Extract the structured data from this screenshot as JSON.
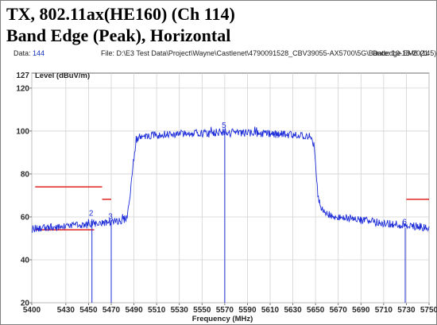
{
  "title_line1": "TX, 802.11ax(HE160) (Ch 114)",
  "title_line2": "Band Edge (Peak), Horizontal",
  "header": {
    "data_label": "Data:",
    "data_value": "144",
    "file_text": "File: D:\\E3 Test Data\\Project\\Wayne\\Castlenet\\4790091528_CBV39055-AX5700\\5G\\Bandedge.EM6  (145)",
    "date_text": "Date: 10-18-2021"
  },
  "chart_data": {
    "type": "line",
    "title": "",
    "xlabel": "Frequency (MHz)",
    "ylabel": "Level (dBuV/m)",
    "xlim": [
      5400,
      5750
    ],
    "ylim": [
      20,
      127
    ],
    "x_ticks": [
      5400,
      5430,
      5450,
      5470,
      5490,
      5510,
      5530,
      5550,
      5570,
      5590,
      5610,
      5630,
      5650,
      5670,
      5690,
      5710,
      5730,
      5750
    ],
    "y_ticks": [
      20,
      40,
      60,
      80,
      100,
      120
    ],
    "y_top_label": "127",
    "grid": true,
    "trace_color": "#1c2cd8",
    "limit_color": "#e01010",
    "trace": [
      [
        5400,
        54.5
      ],
      [
        5410,
        54.8
      ],
      [
        5420,
        55.2
      ],
      [
        5430,
        55.5
      ],
      [
        5440,
        56.0
      ],
      [
        5450,
        56.5
      ],
      [
        5460,
        57.0
      ],
      [
        5466,
        57.5
      ],
      [
        5476,
        58.0
      ],
      [
        5482,
        59.0
      ],
      [
        5484,
        60.5
      ],
      [
        5486,
        66.0
      ],
      [
        5489,
        84.0
      ],
      [
        5492,
        96.0
      ],
      [
        5496,
        97.5
      ],
      [
        5520,
        98.5
      ],
      [
        5550,
        99.0
      ],
      [
        5570,
        99.5
      ],
      [
        5590,
        99.0
      ],
      [
        5620,
        98.5
      ],
      [
        5645,
        97.5
      ],
      [
        5649,
        93.0
      ],
      [
        5652,
        70.0
      ],
      [
        5655,
        64.0
      ],
      [
        5660,
        61.5
      ],
      [
        5670,
        60.0
      ],
      [
        5690,
        58.5
      ],
      [
        5710,
        57.0
      ],
      [
        5730,
        56.0
      ],
      [
        5750,
        55.0
      ]
    ],
    "noise_amplitude": 1.8,
    "limit_lines": [
      {
        "segments": [
          [
            [
              5403,
              74
            ],
            [
              5462,
              74
            ]
          ],
          [
            [
              5462,
              68.2
            ],
            [
              5470,
              68.2
            ]
          ],
          [
            [
              5403,
              54
            ],
            [
              5455,
              54
            ]
          ]
        ]
      },
      {
        "segments": [
          [
            [
              5730,
              68.2
            ],
            [
              5750,
              68.2
            ]
          ]
        ]
      }
    ],
    "markers": [
      {
        "label": "2",
        "x": 5453,
        "y": 59.0
      },
      {
        "label": "3",
        "x": 5470,
        "y": 57.5
      },
      {
        "label": "5",
        "x": 5570,
        "y": 100.0
      },
      {
        "label": "6",
        "x": 5729,
        "y": 55.0
      }
    ]
  }
}
